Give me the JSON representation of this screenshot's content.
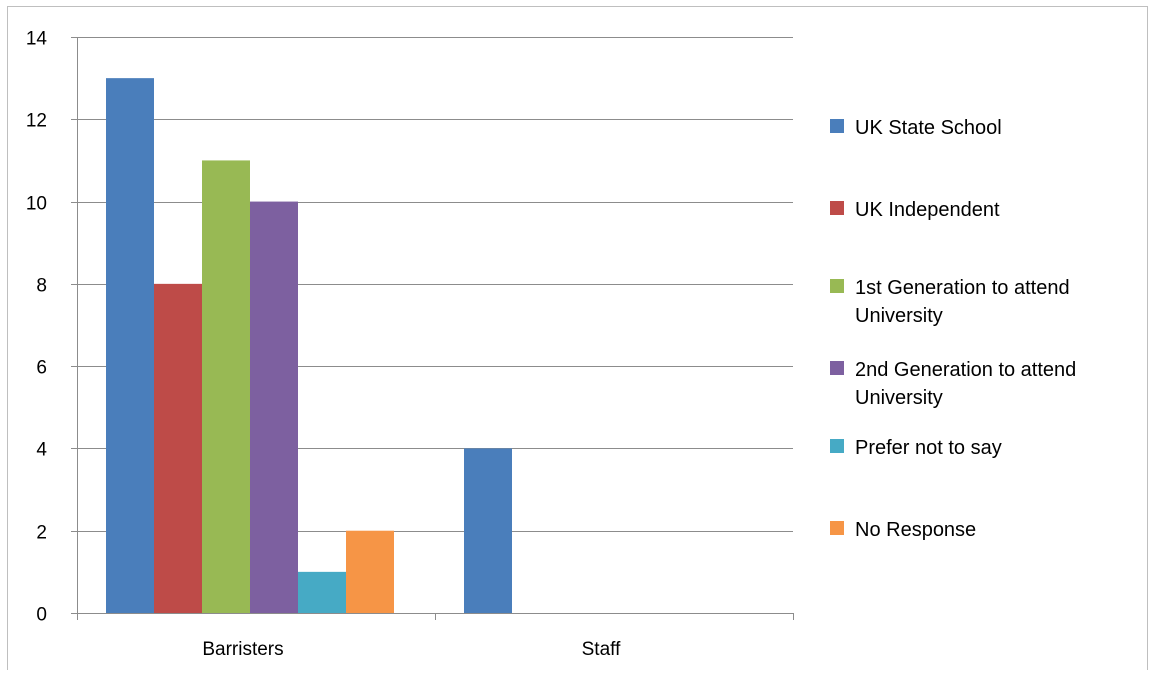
{
  "chart_data": {
    "type": "bar",
    "categories": [
      "Barristers",
      "Staff"
    ],
    "series": [
      {
        "name": "UK State School",
        "values": [
          13,
          4
        ],
        "color": "#4a7ebb"
      },
      {
        "name": "UK Independent",
        "values": [
          8,
          0
        ],
        "color": "#be4b48"
      },
      {
        "name": "1st Generation to attend University",
        "values": [
          11,
          0
        ],
        "color": "#98b954"
      },
      {
        "name": "2nd Generation to attend University",
        "values": [
          10,
          0
        ],
        "color": "#7d60a0"
      },
      {
        "name": "Prefer not to say",
        "values": [
          1,
          0
        ],
        "color": "#46aac5"
      },
      {
        "name": "No Response",
        "values": [
          2,
          0
        ],
        "color": "#f69546"
      }
    ],
    "ylim": [
      0,
      14
    ],
    "yticks": [
      0,
      2,
      4,
      6,
      8,
      10,
      12,
      14
    ],
    "grid": true,
    "legend": "right",
    "title": "",
    "xlabel": "",
    "ylabel": ""
  }
}
